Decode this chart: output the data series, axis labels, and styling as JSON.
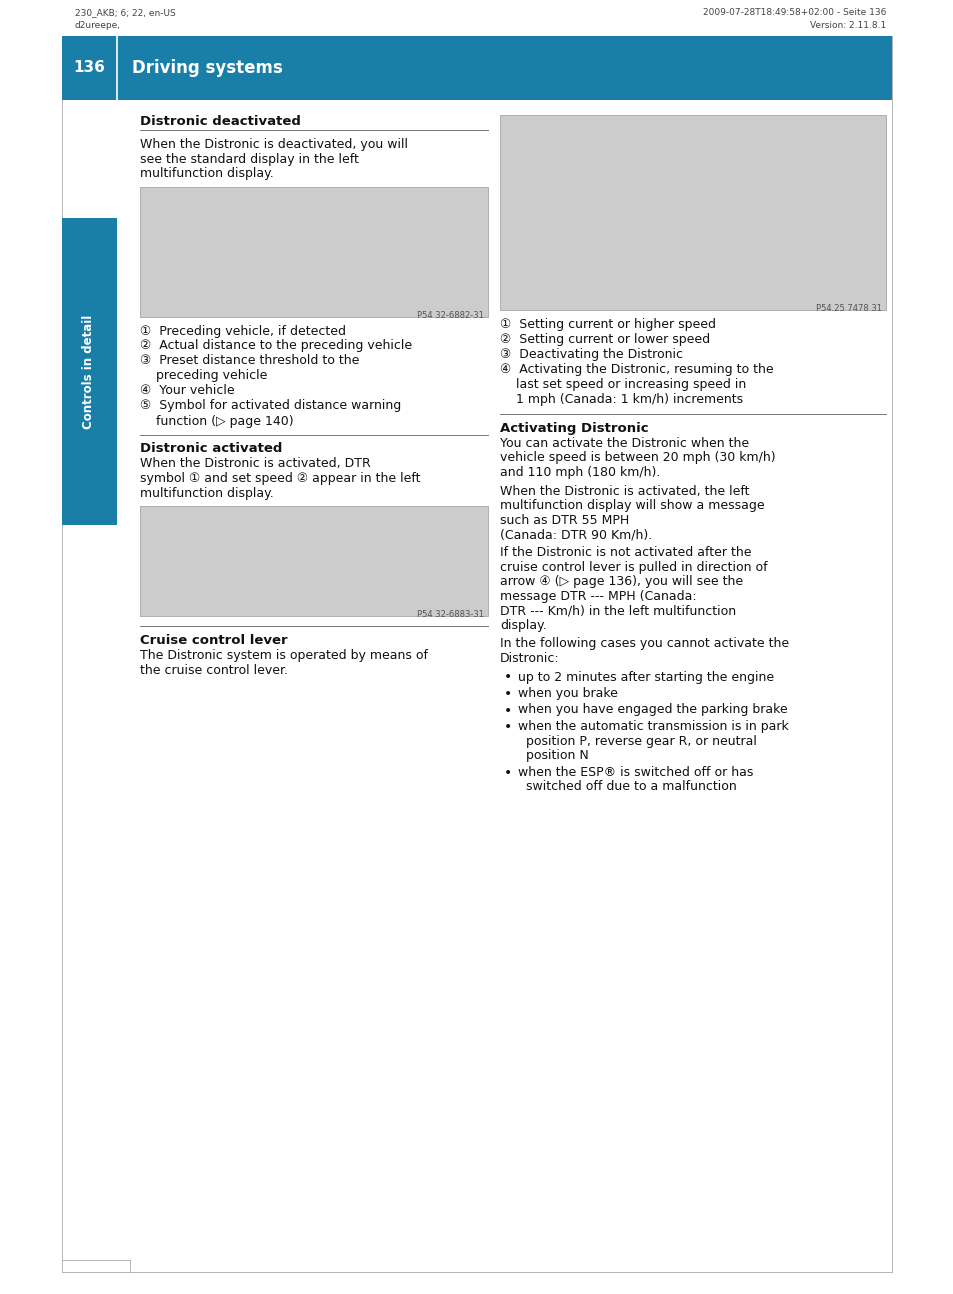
{
  "page_number": "136",
  "chapter_title": "Driving systems",
  "header_left_line1": "230_AKB; 6; 22, en-US",
  "header_left_line2": "d2ureepe,",
  "header_right_line1": "2009-07-28T18:49:58+02:00 - Seite 136",
  "header_right_line2": "Version: 2.11.8.1",
  "header_bg_color": "#1a7fa8",
  "sidebar_bg_color": "#1a7fa8",
  "sidebar_text": "Controls in detail",
  "bg_color": "#ffffff",
  "img_bg": "#cccccc",
  "img_border": "#999999",
  "divider_color": "#888888",
  "text_color": "#111111",
  "section1_title": "Distronic deactivated",
  "section1_body": [
    "When the Distronic is deactivated, you will",
    "see the standard display in the left",
    "multifunction display."
  ],
  "img1_caption": "P54 32-6882-31",
  "section1_items": [
    [
      "①  Preceding vehicle, if detected"
    ],
    [
      "②  Actual distance to the preceding vehicle"
    ],
    [
      "③  Preset distance threshold to the",
      "    preceding vehicle"
    ],
    [
      "④  Your vehicle"
    ],
    [
      "⑤  Symbol for activated distance warning",
      "    function (▷ page 140)"
    ]
  ],
  "section2_title": "Distronic activated",
  "section2_body": [
    "When the Distronic is activated, DTR",
    "symbol ① and set speed ② appear in the left",
    "multifunction display."
  ],
  "img2_caption": "P54 32-6883-31",
  "section3_title": "Cruise control lever",
  "section3_body": [
    "The Distronic system is operated by means of",
    "the cruise control lever."
  ],
  "img3_caption": "P54.25 7478 31",
  "right_items": [
    [
      "①  Setting current or higher speed"
    ],
    [
      "②  Setting current or lower speed"
    ],
    [
      "③  Deactivating the Distronic"
    ],
    [
      "④  Activating the Distronic, resuming to the",
      "    last set speed or increasing speed in",
      "    1 mph (Canada: 1 km/h) increments"
    ]
  ],
  "section4_title": "Activating Distronic",
  "section4_para1": [
    "You can activate the Distronic when the",
    "vehicle speed is between 20 mph (30 km/h)",
    "and 110 mph (180 km/h)."
  ],
  "section4_para2": [
    "When the Distronic is activated, the left",
    "multifunction display will show a message",
    "such as DTR 55 MPH",
    "(Canada: DTR 90 Km/h)."
  ],
  "section4_para3": [
    "If the Distronic is not activated after the",
    "cruise control lever is pulled in direction of",
    "arrow ④ (▷ page 136), you will see the",
    "message DTR --- MPH (Canada:",
    "DTR --- Km/h) in the left multifunction",
    "display."
  ],
  "section4_para4": [
    "In the following cases you cannot activate the",
    "Distronic:"
  ],
  "section4_bullets": [
    [
      "up to 2 minutes after starting the engine"
    ],
    [
      "when you brake"
    ],
    [
      "when you have engaged the parking brake"
    ],
    [
      "when the automatic transmission is in park",
      "  position P, reverse gear R, or neutral",
      "  position N"
    ],
    [
      "when the ESP® is switched off or has",
      "  switched off due to a malfunction"
    ]
  ]
}
